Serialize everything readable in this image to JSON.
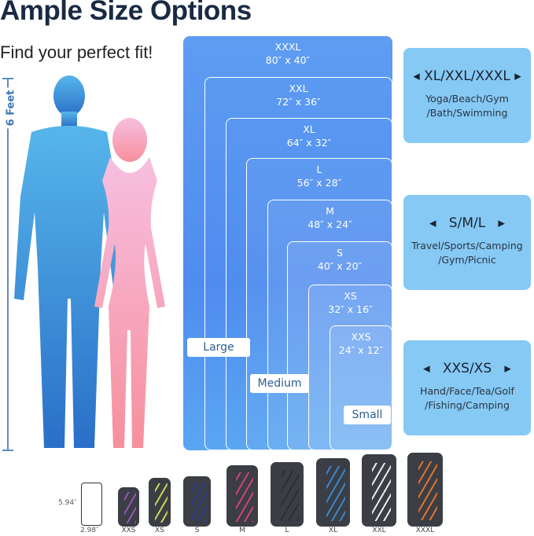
{
  "title": "Ample Size Options",
  "subtitle": "Find your perfect fit!",
  "height_label": "6 Feet",
  "sizes": [
    {
      "name": "XXXL",
      "dims": "80″ x 40″"
    },
    {
      "name": "XXL",
      "dims": "72″ x 36″"
    },
    {
      "name": "XL",
      "dims": "64″ x 32″"
    },
    {
      "name": "L",
      "dims": "56″ x 28″"
    },
    {
      "name": "M",
      "dims": "48″ x 24″"
    },
    {
      "name": "S",
      "dims": "40″ x 20″"
    },
    {
      "name": "XS",
      "dims": "32″ x 16″"
    },
    {
      "name": "XXS",
      "dims": "24″ x 12″"
    }
  ],
  "groups": {
    "large": "Large",
    "medium": "Medium",
    "small": "Small"
  },
  "cards": [
    {
      "heading": "XL/XXL/XXXL",
      "line1": "Yoga/Beach/Gym",
      "line2": "/Bath/Swimming"
    },
    {
      "heading": "S/M/L",
      "line1": "Travel/Sports/Camping",
      "line2": "/Gym/Picnic"
    },
    {
      "heading": "XXS/XS",
      "line1": "Hand/Face/Tea/Golf",
      "line2": "/Fishing/Camping"
    }
  ],
  "phone": {
    "height": "5.94″",
    "width": "2.98″"
  },
  "towels": [
    {
      "label": "XXS",
      "color": "#9b59c6"
    },
    {
      "label": "XS",
      "color": "#d8e85a"
    },
    {
      "label": "S",
      "color": "#2a3a9a"
    },
    {
      "label": "M",
      "color": "#e0457a"
    },
    {
      "label": "L",
      "color": "#2a2c30"
    },
    {
      "label": "XL",
      "color": "#3a8fe0"
    },
    {
      "label": "XXL",
      "color": "#ffffff"
    },
    {
      "label": "XXXL",
      "color": "#f27a2a"
    }
  ]
}
